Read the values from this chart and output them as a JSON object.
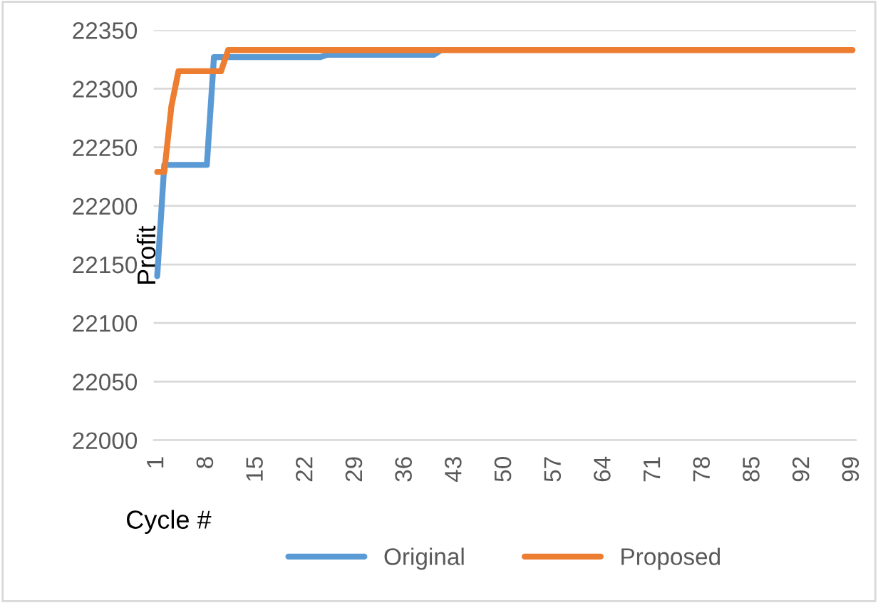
{
  "chart_data": {
    "type": "line",
    "xlabel": "Cycle #",
    "ylabel": "Profit",
    "xlim": [
      0.5,
      99.5
    ],
    "xticks": [
      1,
      8,
      15,
      22,
      29,
      36,
      43,
      50,
      57,
      64,
      71,
      78,
      85,
      92,
      99
    ],
    "ylim": [
      22000,
      22350
    ],
    "yticks": [
      22000,
      22050,
      22100,
      22150,
      22200,
      22250,
      22300,
      22350
    ],
    "grid": "y",
    "legend": "bottom",
    "marker": "none",
    "line_style": "solid",
    "series": [
      {
        "name": "Original",
        "color": "#5b9bd5",
        "x": [
          1,
          2,
          8,
          9,
          24,
          25,
          40,
          41
        ],
        "values": [
          22140,
          22235,
          22235,
          22327,
          22327,
          22329,
          22329,
          22333
        ]
      },
      {
        "name": "Proposed",
        "color": "#ed7d31",
        "x": [
          1,
          2,
          3,
          4,
          10,
          11,
          99
        ],
        "values": [
          22229,
          22229,
          22285,
          22315,
          22315,
          22333,
          22333
        ]
      }
    ]
  }
}
